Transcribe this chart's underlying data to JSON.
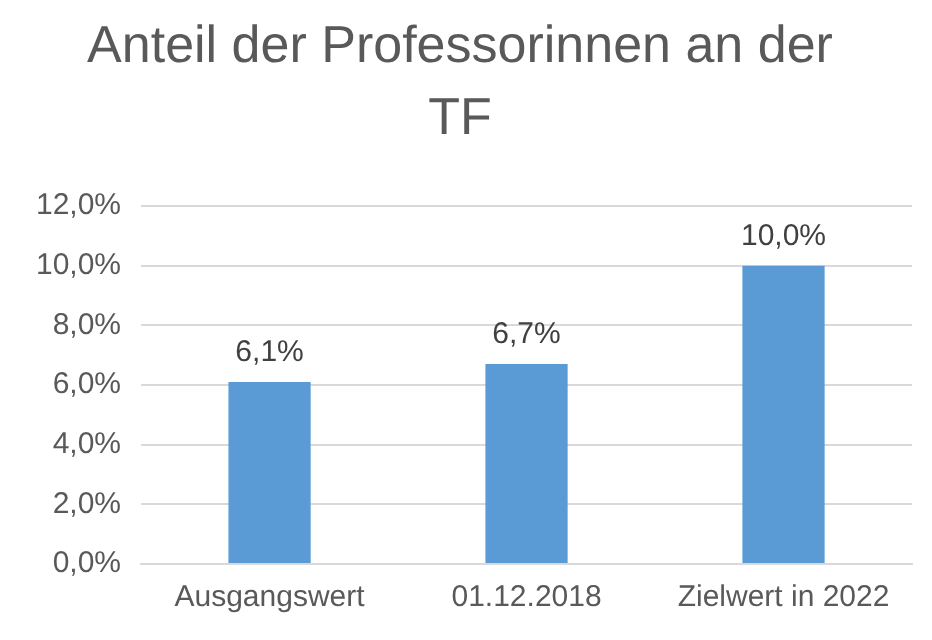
{
  "chart_data": {
    "type": "bar",
    "title": "Anteil der Professorinnen an der TF",
    "categories": [
      "Ausgangswert",
      "01.12.2018",
      "Zielwert in 2022"
    ],
    "values": [
      6.1,
      6.7,
      10.0
    ],
    "color": "#5b9bd5",
    "value_labels": [
      "6,1%",
      "6,7%",
      "10,0%"
    ],
    "ylim": [
      0,
      12
    ],
    "yticks": [
      {
        "value": 0,
        "label": "0,0%"
      },
      {
        "value": 2,
        "label": "2,0%"
      },
      {
        "value": 4,
        "label": "4,0%"
      },
      {
        "value": 6,
        "label": "6,0%"
      },
      {
        "value": 8,
        "label": "8,0%"
      },
      {
        "value": 10,
        "label": "10,0%"
      },
      {
        "value": 12,
        "label": "12,0%"
      }
    ],
    "grid": "y",
    "legend": false
  }
}
